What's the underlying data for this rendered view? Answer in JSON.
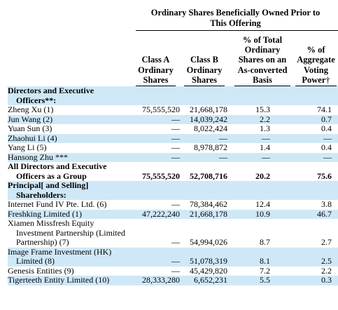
{
  "header": {
    "group_title_line1": "Ordinary Shares Beneficially Owned Prior to",
    "group_title_line2": "This Offering",
    "columns": [
      {
        "lines": [
          "Class A",
          "Ordinary",
          "Shares"
        ]
      },
      {
        "lines": [
          "Class B",
          "Ordinary",
          "Shares"
        ]
      },
      {
        "lines": [
          "% of Total",
          "Ordinary",
          "Shares on an",
          "As-converted",
          "Basis"
        ]
      },
      {
        "lines": [
          "% of",
          "Aggregate",
          "Voting",
          "Power"
        ],
        "dagger": "†"
      }
    ]
  },
  "rows": [
    {
      "label": "Directors and Executive",
      "bold": true,
      "band": true,
      "cells": [
        "",
        "",
        "",
        ""
      ]
    },
    {
      "label": "Officers**:",
      "bold": true,
      "band": true,
      "cont": true,
      "cells": [
        "",
        "",
        "",
        ""
      ]
    },
    {
      "label": "Zheng Xu (1)",
      "band": false,
      "cells": [
        "75,555,520",
        "21,668,178",
        "15.3",
        "74.1"
      ]
    },
    {
      "label": "Jun Wang (2)",
      "band": true,
      "cells": [
        "—",
        "14,039,242",
        "2.2",
        "0.7"
      ]
    },
    {
      "label": "Yuan Sun (3)",
      "band": false,
      "cells": [
        "—",
        "8,022,424",
        "1.3",
        "0.4"
      ]
    },
    {
      "label": "Zhaohui Li (4)",
      "band": true,
      "cells": [
        "—",
        "—",
        "—",
        "—"
      ]
    },
    {
      "label": "Yang Li (5)",
      "band": false,
      "cells": [
        "—",
        "8,978,872",
        "1.4",
        "0.4"
      ]
    },
    {
      "label": "Hansong Zhu ***",
      "band": true,
      "cells": [
        "—",
        "—",
        "—",
        "—"
      ]
    },
    {
      "label": "All Directors and Executive",
      "bold": true,
      "band": false,
      "cells": [
        "",
        "",
        "",
        ""
      ]
    },
    {
      "label": "Officers as a Group",
      "bold": true,
      "band": false,
      "cont": true,
      "cells": [
        "75,555,520",
        "52,708,716",
        "20.2",
        "75.6"
      ]
    },
    {
      "label": "Principal[ and Selling]",
      "bold": true,
      "band": true,
      "cells": [
        "",
        "",
        "",
        ""
      ]
    },
    {
      "label": "Shareholders:",
      "bold": true,
      "band": true,
      "cont": true,
      "cells": [
        "",
        "",
        "",
        ""
      ]
    },
    {
      "label": "Internet Fund IV Pte. Ltd. (6)",
      "band": false,
      "cells": [
        "—",
        "78,384,462",
        "12.4",
        "3.8"
      ]
    },
    {
      "label": "Freshking Limited (1)",
      "band": true,
      "cells": [
        "47,222,240",
        "21,668,178",
        "10.9",
        "46.7"
      ]
    },
    {
      "label": "Xiamen Missfresh Equity",
      "band": false,
      "cells": [
        "",
        "",
        "",
        ""
      ]
    },
    {
      "label": "Investment Partnership (Limited",
      "band": false,
      "cont": true,
      "cells": [
        "",
        "",
        "",
        ""
      ]
    },
    {
      "label": "Partnership) (7)",
      "band": false,
      "cont": true,
      "cells": [
        "—",
        "54,994,026",
        "8.7",
        "2.7"
      ]
    },
    {
      "label": "Image Frame Investment (HK)",
      "band": true,
      "cells": [
        "",
        "",
        "",
        ""
      ]
    },
    {
      "label": "Limited (8)",
      "band": true,
      "cont": true,
      "cells": [
        "—",
        "51,078,319",
        "8.1",
        "2.5"
      ]
    },
    {
      "label": "Genesis Entities (9)",
      "band": false,
      "cells": [
        "—",
        "45,429,820",
        "7.2",
        "2.2"
      ]
    },
    {
      "label": "Tigerteeth Entity Limited (10)",
      "band": true,
      "cells": [
        "28,333,280",
        "6,652,231",
        "5.5",
        "0.3"
      ]
    }
  ]
}
